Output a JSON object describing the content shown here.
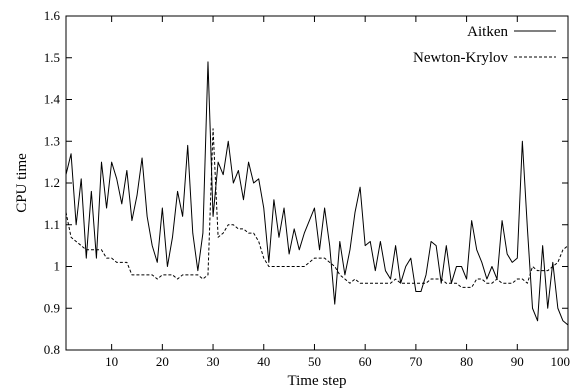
{
  "chart_data": {
    "type": "line",
    "title": "",
    "xlabel": "Time step",
    "ylabel": "CPU time",
    "xlim": [
      1,
      100
    ],
    "ylim": [
      0.8,
      1.6
    ],
    "xticks": [
      10,
      20,
      30,
      40,
      50,
      60,
      70,
      80,
      90,
      100
    ],
    "yticks": [
      0.8,
      0.9,
      1.0,
      1.1,
      1.2,
      1.3,
      1.4,
      1.5,
      1.6
    ],
    "xtick_labels": [
      "10",
      "20",
      "30",
      "40",
      "50",
      "60",
      "70",
      "80",
      "90",
      "100"
    ],
    "ytick_labels": [
      "0.8",
      "0.9",
      "1",
      "1.1",
      "1.2",
      "1.3",
      "1.4",
      "1.5",
      "1.6"
    ],
    "grid": false,
    "legend_position": "top-right",
    "series": [
      {
        "name": "Aitken",
        "style": "solid",
        "color": "#000000",
        "x": [
          1,
          2,
          3,
          4,
          5,
          6,
          7,
          8,
          9,
          10,
          11,
          12,
          13,
          14,
          15,
          16,
          17,
          18,
          19,
          20,
          21,
          22,
          23,
          24,
          25,
          26,
          27,
          28,
          29,
          30,
          31,
          32,
          33,
          34,
          35,
          36,
          37,
          38,
          39,
          40,
          41,
          42,
          43,
          44,
          45,
          46,
          47,
          48,
          49,
          50,
          51,
          52,
          53,
          54,
          55,
          56,
          57,
          58,
          59,
          60,
          61,
          62,
          63,
          64,
          65,
          66,
          67,
          68,
          69,
          70,
          71,
          72,
          73,
          74,
          75,
          76,
          77,
          78,
          79,
          80,
          81,
          82,
          83,
          84,
          85,
          86,
          87,
          88,
          89,
          90,
          91,
          92,
          93,
          94,
          95,
          96,
          97,
          98,
          99,
          100
        ],
        "values": [
          1.22,
          1.27,
          1.1,
          1.21,
          1.02,
          1.18,
          1.02,
          1.25,
          1.14,
          1.25,
          1.21,
          1.15,
          1.23,
          1.11,
          1.17,
          1.26,
          1.12,
          1.05,
          1.01,
          1.14,
          1.0,
          1.07,
          1.18,
          1.12,
          1.29,
          1.08,
          0.99,
          1.08,
          1.49,
          1.12,
          1.25,
          1.22,
          1.3,
          1.2,
          1.23,
          1.16,
          1.25,
          1.2,
          1.21,
          1.14,
          1.01,
          1.16,
          1.07,
          1.14,
          1.03,
          1.09,
          1.04,
          1.08,
          1.11,
          1.14,
          1.04,
          1.14,
          1.05,
          0.91,
          1.06,
          0.98,
          1.04,
          1.13,
          1.19,
          1.05,
          1.06,
          0.99,
          1.06,
          0.99,
          0.97,
          1.05,
          0.96,
          1.0,
          1.02,
          0.94,
          0.94,
          0.98,
          1.06,
          1.05,
          0.96,
          1.05,
          0.96,
          1.0,
          1.0,
          0.97,
          1.11,
          1.04,
          1.01,
          0.97,
          1.0,
          0.97,
          1.11,
          1.03,
          1.01,
          1.02,
          1.3,
          1.09,
          0.9,
          0.87,
          1.05,
          0.9,
          1.01,
          0.9,
          0.87,
          0.86
        ]
      },
      {
        "name": "Newton-Krylov",
        "style": "dashed",
        "color": "#000000",
        "x": [
          1,
          2,
          3,
          4,
          5,
          6,
          7,
          8,
          9,
          10,
          11,
          12,
          13,
          14,
          15,
          16,
          17,
          18,
          19,
          20,
          21,
          22,
          23,
          24,
          25,
          26,
          27,
          28,
          29,
          30,
          31,
          32,
          33,
          34,
          35,
          36,
          37,
          38,
          39,
          40,
          41,
          42,
          43,
          44,
          45,
          46,
          47,
          48,
          49,
          50,
          51,
          52,
          53,
          54,
          55,
          56,
          57,
          58,
          59,
          60,
          61,
          62,
          63,
          64,
          65,
          66,
          67,
          68,
          69,
          70,
          71,
          72,
          73,
          74,
          75,
          76,
          77,
          78,
          79,
          80,
          81,
          82,
          83,
          84,
          85,
          86,
          87,
          88,
          89,
          90,
          91,
          92,
          93,
          94,
          95,
          96,
          97,
          98,
          99,
          100
        ],
        "values": [
          1.13,
          1.07,
          1.06,
          1.05,
          1.04,
          1.04,
          1.04,
          1.04,
          1.02,
          1.02,
          1.01,
          1.01,
          1.01,
          0.98,
          0.98,
          0.98,
          0.98,
          0.98,
          0.97,
          0.98,
          0.98,
          0.98,
          0.97,
          0.98,
          0.98,
          0.98,
          0.98,
          0.97,
          0.98,
          1.33,
          1.07,
          1.08,
          1.1,
          1.1,
          1.09,
          1.09,
          1.08,
          1.08,
          1.06,
          1.02,
          1.0,
          1.0,
          1.0,
          1.0,
          1.0,
          1.0,
          1.0,
          1.0,
          1.01,
          1.02,
          1.02,
          1.02,
          1.01,
          1.0,
          0.98,
          0.97,
          0.96,
          0.97,
          0.96,
          0.96,
          0.96,
          0.96,
          0.96,
          0.96,
          0.96,
          0.97,
          0.96,
          0.96,
          0.96,
          0.96,
          0.96,
          0.96,
          0.97,
          0.97,
          0.97,
          0.96,
          0.96,
          0.96,
          0.95,
          0.95,
          0.95,
          0.97,
          0.97,
          0.96,
          0.96,
          0.97,
          0.96,
          0.96,
          0.96,
          0.97,
          0.97,
          0.96,
          1.0,
          0.99,
          0.99,
          0.99,
          1.0,
          1.01,
          1.04,
          1.05
        ]
      }
    ]
  }
}
